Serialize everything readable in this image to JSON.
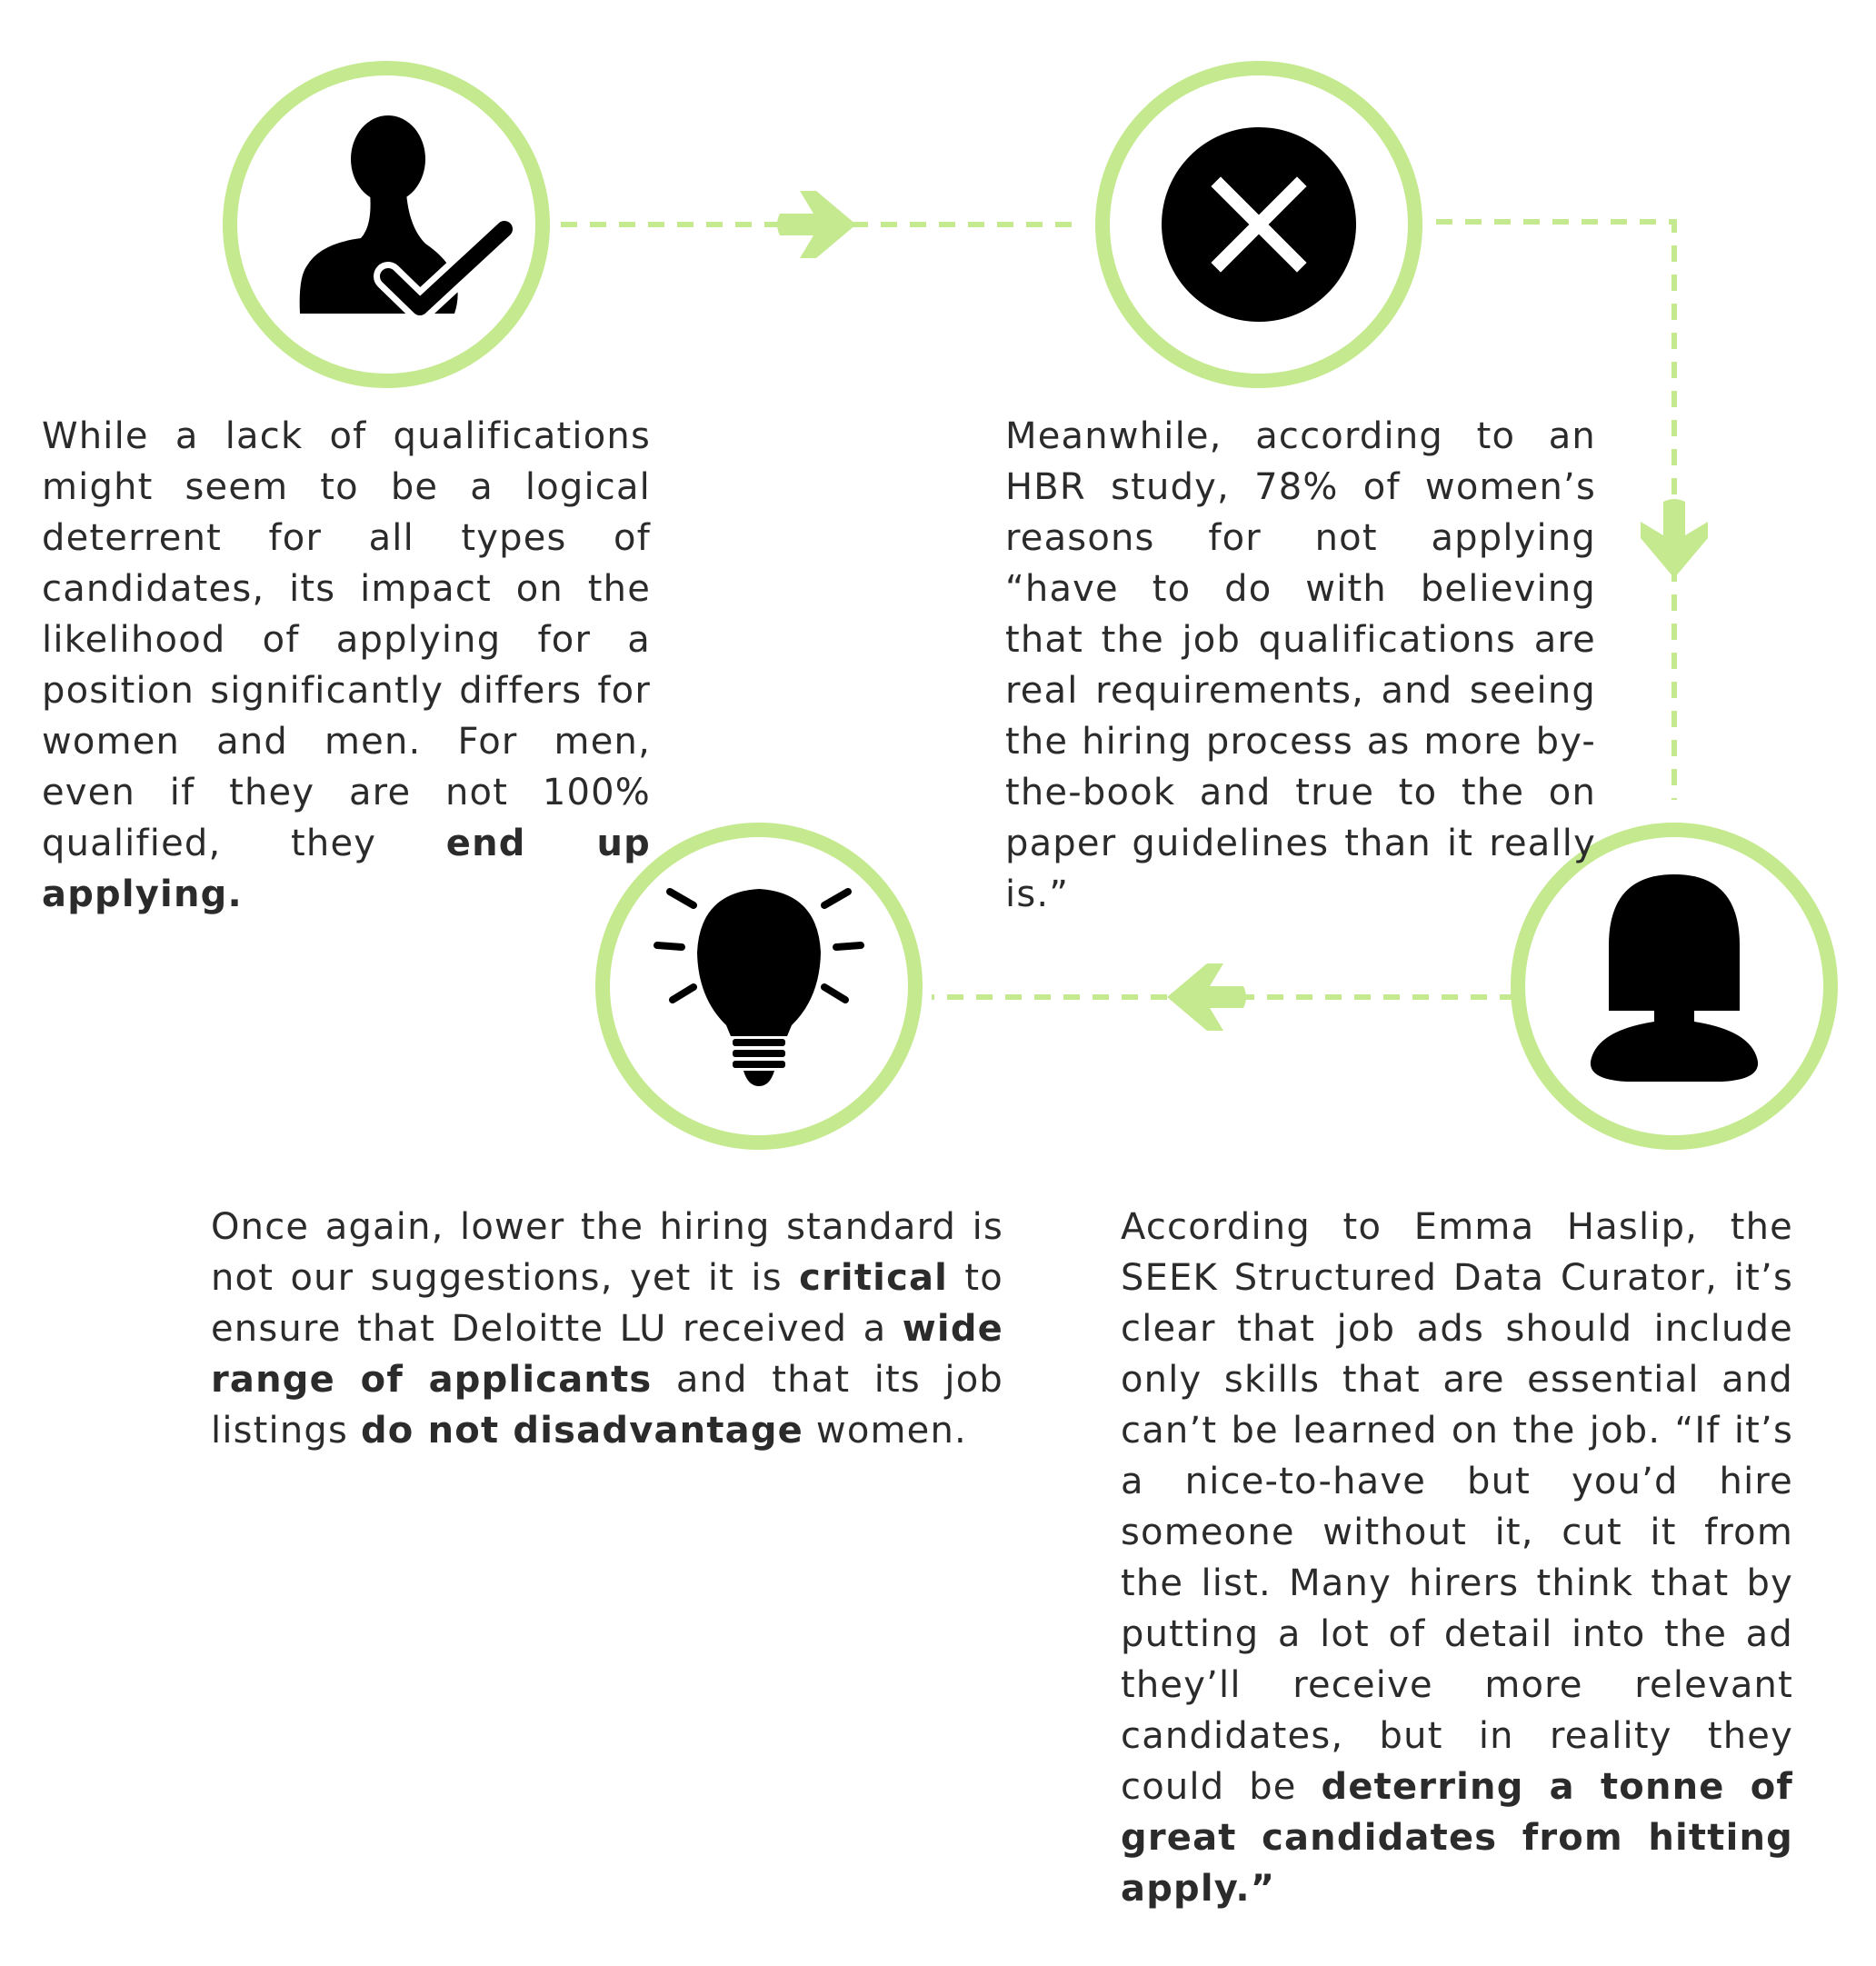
{
  "colors": {
    "accent": "#c5e98e",
    "icon": "#000000",
    "text": "#2b2b2b"
  },
  "nodes": [
    {
      "id": "qualified-man",
      "icon": "user-check-icon"
    },
    {
      "id": "rejection",
      "icon": "close-circle-icon"
    },
    {
      "id": "woman",
      "icon": "woman-icon"
    },
    {
      "id": "idea",
      "icon": "lightbulb-icon"
    }
  ],
  "paragraphs": {
    "p1": {
      "t1": "While a lack of qualifications might seem to be a logical deterrent for all types of candidates, its impact on the likelihood of applying for a position significantly differs for women and men. For men, even if they are not 100% qualified, they ",
      "b1": "end up applying."
    },
    "p2": {
      "t1": "Meanwhile, according to an HBR study, 78% of women’s reasons for not applying “have to do with believing that the job qualifications are real requirements, and seeing the hiring process as more by-the-book and true to the on paper guidelines than it really is.”"
    },
    "p3": {
      "t1": "Once again, lower the hiring standard is not our suggestions, yet it is ",
      "b1": "critical",
      "t2": " to ensure that Deloitte LU received a ",
      "b2": "wide range of applicants",
      "t3": " and that its job listings ",
      "b3": "do not disadvantage",
      "t4": " women."
    },
    "p4": {
      "t1": "According to Emma Haslip, the SEEK Structured Data Curator, it’s clear that job ads should include only skills that are essential and can’t be learned on the job. “If it’s a nice-to-have but you’d hire someone without it, cut it from the list. Many hirers think that by putting a lot of detail into the ad they’ll receive more relevant candidates, but in reality they could be ",
      "b1": "deterring a tonne of great candidates from hitting apply.”"
    }
  }
}
